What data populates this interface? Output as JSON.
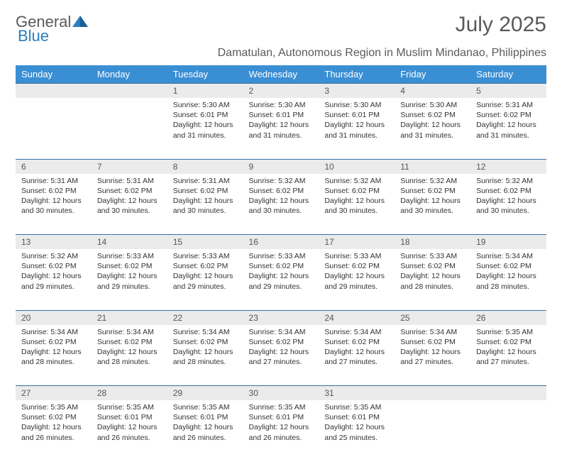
{
  "logo": {
    "word1": "General",
    "word2": "Blue"
  },
  "title": "July 2025",
  "subtitle": "Damatulan, Autonomous Region in Muslim Mindanao, Philippines",
  "colors": {
    "header_bg": "#3a8fd4",
    "header_text": "#ffffff",
    "daynum_bg": "#ebebeb",
    "border": "#3a6fa8",
    "title_text": "#5a5a5a",
    "logo_gray": "#5a5a5a",
    "logo_blue": "#2a7fbf",
    "body_text": "#333333"
  },
  "fontsizes": {
    "title": 30,
    "subtitle": 16,
    "weekday": 13,
    "daynum": 12,
    "content": 10.5
  },
  "weekdays": [
    "Sunday",
    "Monday",
    "Tuesday",
    "Wednesday",
    "Thursday",
    "Friday",
    "Saturday"
  ],
  "weeks": [
    [
      null,
      null,
      {
        "n": "1",
        "sr": "5:30 AM",
        "ss": "6:01 PM",
        "dl": "12 hours and 31 minutes."
      },
      {
        "n": "2",
        "sr": "5:30 AM",
        "ss": "6:01 PM",
        "dl": "12 hours and 31 minutes."
      },
      {
        "n": "3",
        "sr": "5:30 AM",
        "ss": "6:01 PM",
        "dl": "12 hours and 31 minutes."
      },
      {
        "n": "4",
        "sr": "5:30 AM",
        "ss": "6:02 PM",
        "dl": "12 hours and 31 minutes."
      },
      {
        "n": "5",
        "sr": "5:31 AM",
        "ss": "6:02 PM",
        "dl": "12 hours and 31 minutes."
      }
    ],
    [
      {
        "n": "6",
        "sr": "5:31 AM",
        "ss": "6:02 PM",
        "dl": "12 hours and 30 minutes."
      },
      {
        "n": "7",
        "sr": "5:31 AM",
        "ss": "6:02 PM",
        "dl": "12 hours and 30 minutes."
      },
      {
        "n": "8",
        "sr": "5:31 AM",
        "ss": "6:02 PM",
        "dl": "12 hours and 30 minutes."
      },
      {
        "n": "9",
        "sr": "5:32 AM",
        "ss": "6:02 PM",
        "dl": "12 hours and 30 minutes."
      },
      {
        "n": "10",
        "sr": "5:32 AM",
        "ss": "6:02 PM",
        "dl": "12 hours and 30 minutes."
      },
      {
        "n": "11",
        "sr": "5:32 AM",
        "ss": "6:02 PM",
        "dl": "12 hours and 30 minutes."
      },
      {
        "n": "12",
        "sr": "5:32 AM",
        "ss": "6:02 PM",
        "dl": "12 hours and 30 minutes."
      }
    ],
    [
      {
        "n": "13",
        "sr": "5:32 AM",
        "ss": "6:02 PM",
        "dl": "12 hours and 29 minutes."
      },
      {
        "n": "14",
        "sr": "5:33 AM",
        "ss": "6:02 PM",
        "dl": "12 hours and 29 minutes."
      },
      {
        "n": "15",
        "sr": "5:33 AM",
        "ss": "6:02 PM",
        "dl": "12 hours and 29 minutes."
      },
      {
        "n": "16",
        "sr": "5:33 AM",
        "ss": "6:02 PM",
        "dl": "12 hours and 29 minutes."
      },
      {
        "n": "17",
        "sr": "5:33 AM",
        "ss": "6:02 PM",
        "dl": "12 hours and 29 minutes."
      },
      {
        "n": "18",
        "sr": "5:33 AM",
        "ss": "6:02 PM",
        "dl": "12 hours and 28 minutes."
      },
      {
        "n": "19",
        "sr": "5:34 AM",
        "ss": "6:02 PM",
        "dl": "12 hours and 28 minutes."
      }
    ],
    [
      {
        "n": "20",
        "sr": "5:34 AM",
        "ss": "6:02 PM",
        "dl": "12 hours and 28 minutes."
      },
      {
        "n": "21",
        "sr": "5:34 AM",
        "ss": "6:02 PM",
        "dl": "12 hours and 28 minutes."
      },
      {
        "n": "22",
        "sr": "5:34 AM",
        "ss": "6:02 PM",
        "dl": "12 hours and 28 minutes."
      },
      {
        "n": "23",
        "sr": "5:34 AM",
        "ss": "6:02 PM",
        "dl": "12 hours and 27 minutes."
      },
      {
        "n": "24",
        "sr": "5:34 AM",
        "ss": "6:02 PM",
        "dl": "12 hours and 27 minutes."
      },
      {
        "n": "25",
        "sr": "5:34 AM",
        "ss": "6:02 PM",
        "dl": "12 hours and 27 minutes."
      },
      {
        "n": "26",
        "sr": "5:35 AM",
        "ss": "6:02 PM",
        "dl": "12 hours and 27 minutes."
      }
    ],
    [
      {
        "n": "27",
        "sr": "5:35 AM",
        "ss": "6:02 PM",
        "dl": "12 hours and 26 minutes."
      },
      {
        "n": "28",
        "sr": "5:35 AM",
        "ss": "6:01 PM",
        "dl": "12 hours and 26 minutes."
      },
      {
        "n": "29",
        "sr": "5:35 AM",
        "ss": "6:01 PM",
        "dl": "12 hours and 26 minutes."
      },
      {
        "n": "30",
        "sr": "5:35 AM",
        "ss": "6:01 PM",
        "dl": "12 hours and 26 minutes."
      },
      {
        "n": "31",
        "sr": "5:35 AM",
        "ss": "6:01 PM",
        "dl": "12 hours and 25 minutes."
      },
      null,
      null
    ]
  ],
  "labels": {
    "sunrise": "Sunrise:",
    "sunset": "Sunset:",
    "daylight": "Daylight:"
  }
}
